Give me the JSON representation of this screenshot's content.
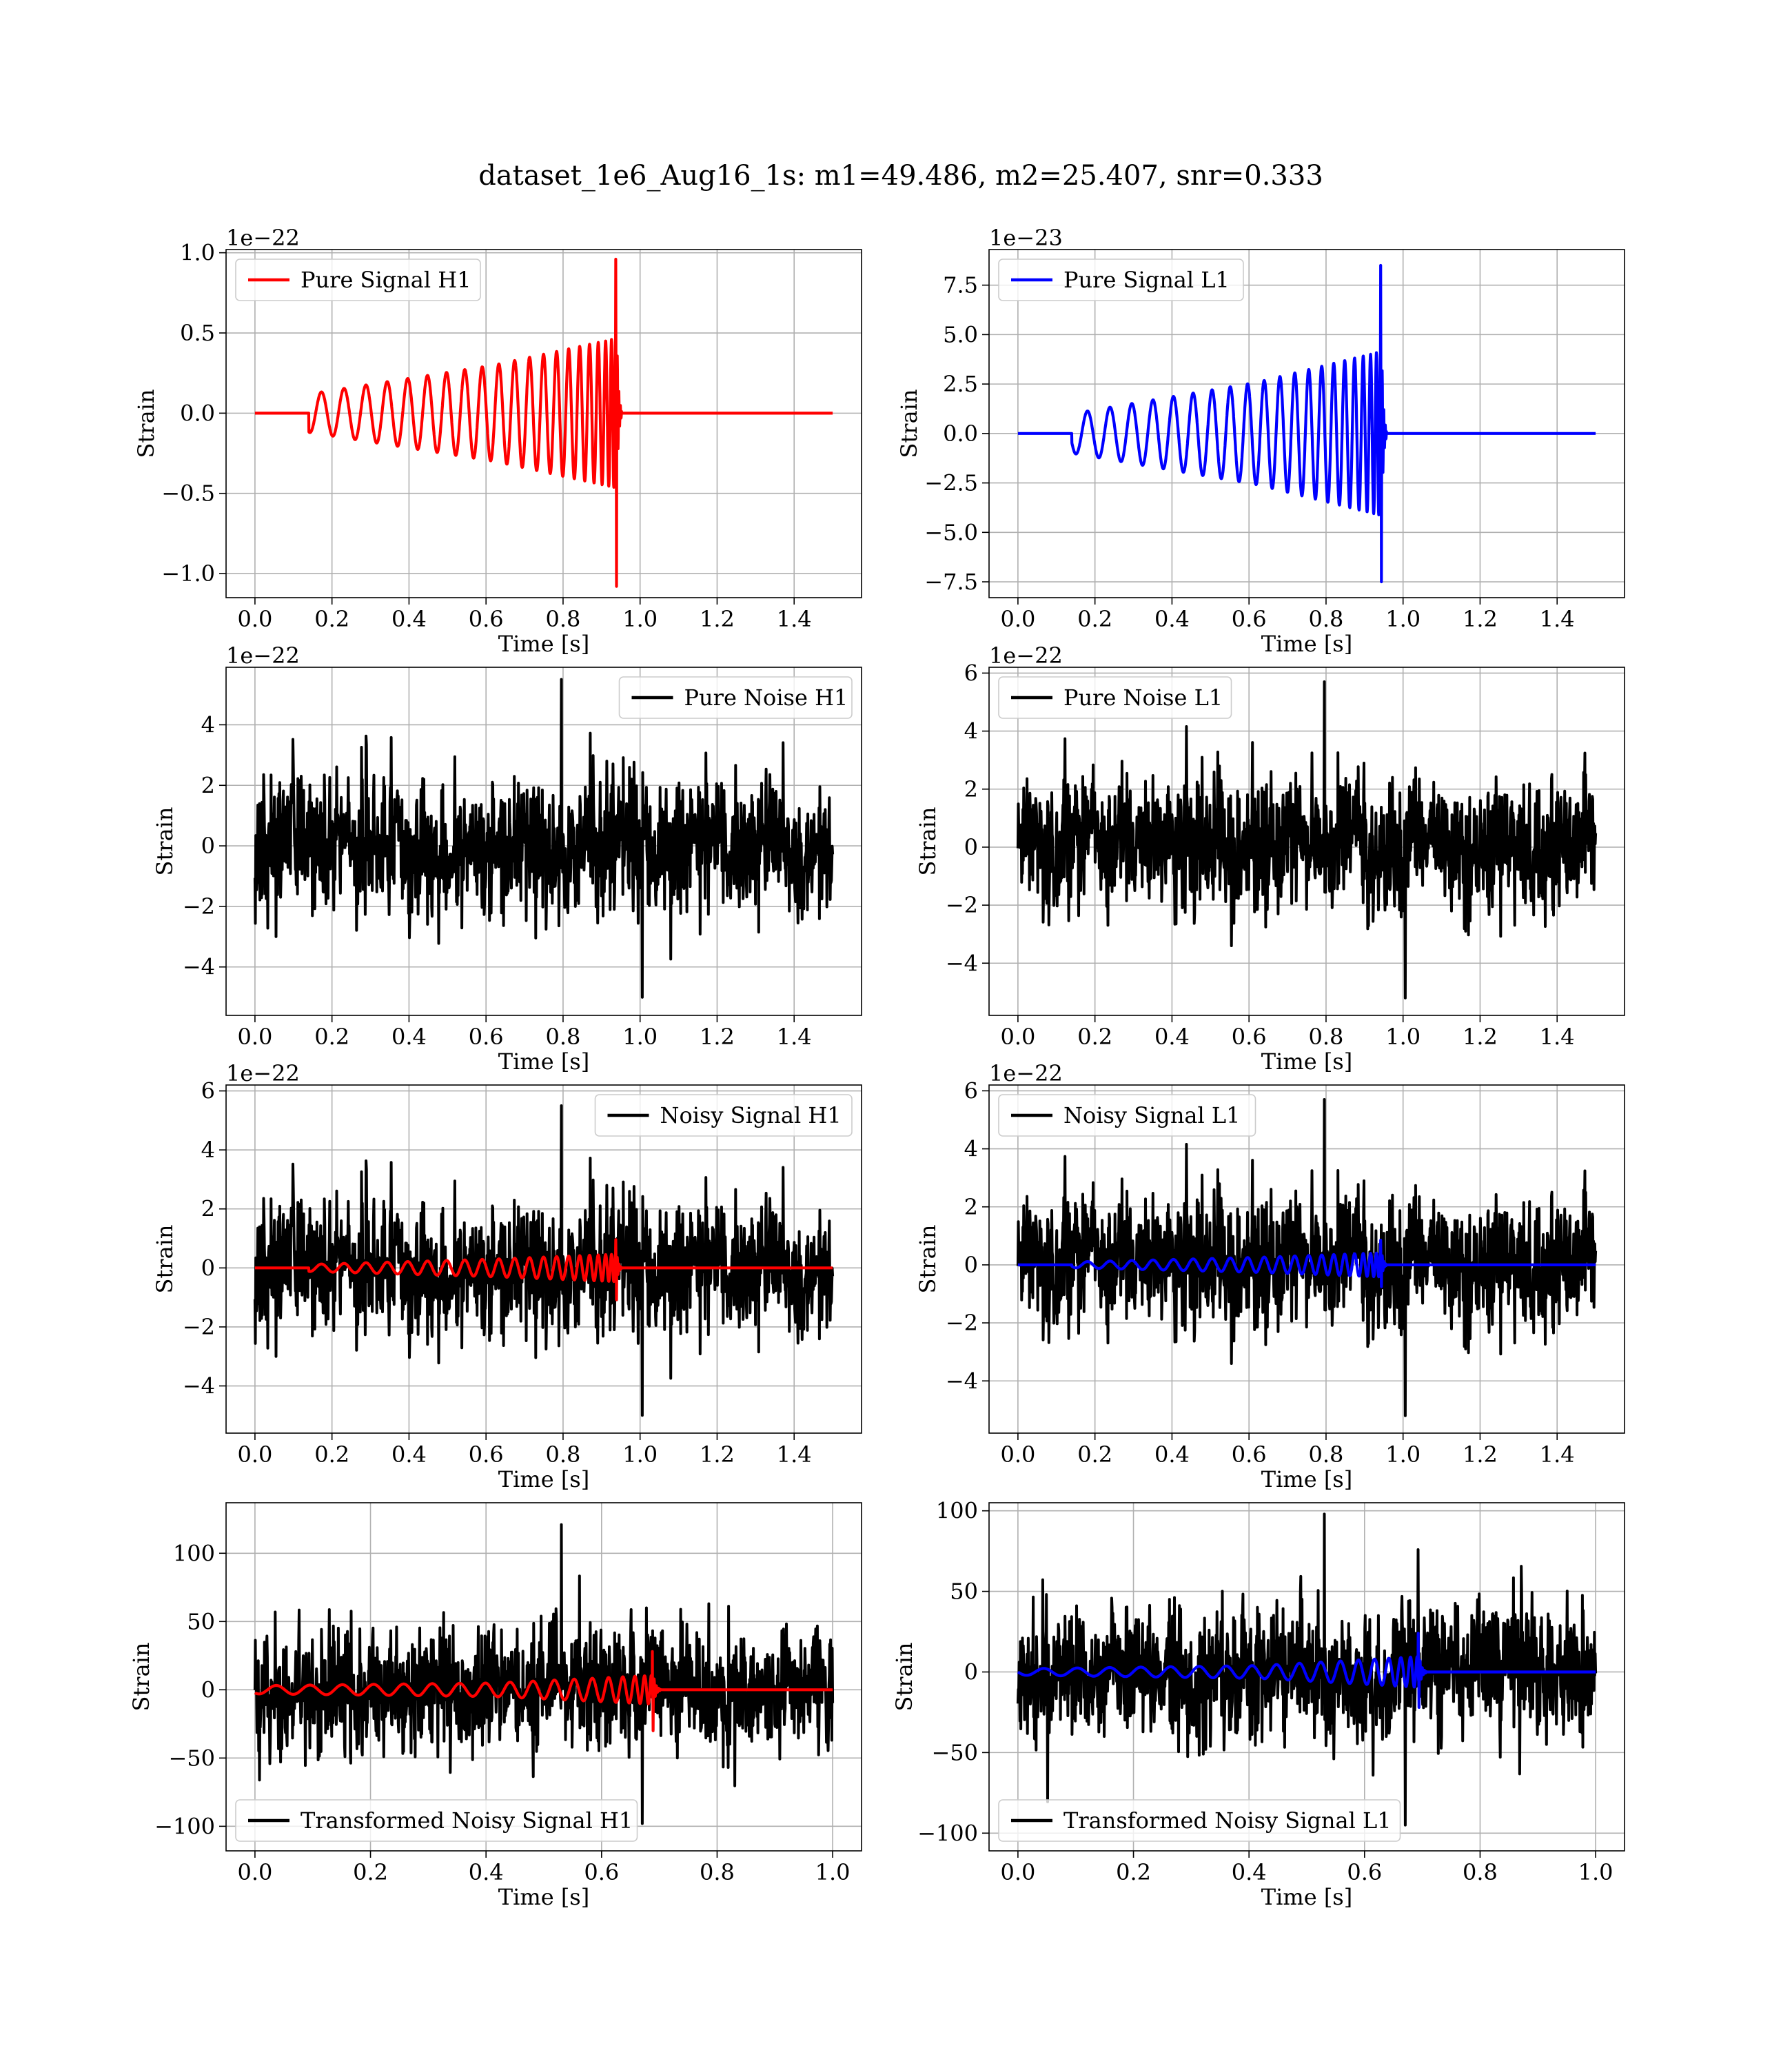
{
  "figure": {
    "suptitle": "dataset_1e6_Aug16_1s: m1=49.486, m2=25.407, snr=0.333"
  },
  "chart_data": [
    {
      "type": "line",
      "id": "pure-signal-h1",
      "xlabel": "Time [s]",
      "ylabel": "Strain",
      "offset_text": "1e−22",
      "xlim": [
        -0.075,
        1.575
      ],
      "ylim": [
        -1.15,
        1.02
      ],
      "xticks": [
        0,
        0.2,
        0.4,
        0.6,
        0.8,
        1.0,
        1.2,
        1.4
      ],
      "xtick_labels": [
        "0.0",
        "0.2",
        "0.4",
        "0.6",
        "0.8",
        "1.0",
        "1.2",
        "1.4"
      ],
      "yticks": [
        -1.0,
        -0.5,
        0.0,
        0.5,
        1.0
      ],
      "ytick_labels": [
        "−1.0",
        "−0.5",
        "0.0",
        "0.5",
        "1.0"
      ],
      "grid": true,
      "legend_position": "upper-left",
      "series": [
        {
          "name": "Pure Signal H1",
          "color": "#ff0000",
          "kind": "chirp",
          "t_start": 0.0,
          "t_end": 1.5,
          "t_onset": 0.14,
          "t_merger": 0.94,
          "peak_pos": 0.96,
          "peak_neg": -1.08,
          "amp_start": 0.12,
          "amp_mid": 0.3,
          "amp_late": 0.45
        }
      ]
    },
    {
      "type": "line",
      "id": "pure-signal-l1",
      "xlabel": "Time [s]",
      "ylabel": "Strain",
      "offset_text": "1e−23",
      "xlim": [
        -0.075,
        1.575
      ],
      "ylim": [
        -8.3,
        9.3
      ],
      "xticks": [
        0,
        0.2,
        0.4,
        0.6,
        0.8,
        1.0,
        1.2,
        1.4
      ],
      "xtick_labels": [
        "0.0",
        "0.2",
        "0.4",
        "0.6",
        "0.8",
        "1.0",
        "1.2",
        "1.4"
      ],
      "yticks": [
        -7.5,
        -5.0,
        -2.5,
        0.0,
        2.5,
        5.0,
        7.5
      ],
      "ytick_labels": [
        "−7.5",
        "−5.0",
        "−2.5",
        "0.0",
        "2.5",
        "5.0",
        "7.5"
      ],
      "grid": true,
      "legend_position": "upper-left",
      "series": [
        {
          "name": "Pure Signal L1",
          "color": "#0000ff",
          "kind": "chirp",
          "t_start": 0.0,
          "t_end": 1.5,
          "t_onset": 0.14,
          "t_merger": 0.945,
          "peak_pos": 8.5,
          "peak_neg": -7.5,
          "amp_start": 1.0,
          "amp_mid": 2.6,
          "amp_late": 4.0
        }
      ]
    },
    {
      "type": "line",
      "id": "pure-noise-h1",
      "xlabel": "Time [s]",
      "ylabel": "Strain",
      "offset_text": "1e−22",
      "xlim": [
        -0.075,
        1.575
      ],
      "ylim": [
        -5.6,
        5.9
      ],
      "xticks": [
        0,
        0.2,
        0.4,
        0.6,
        0.8,
        1.0,
        1.2,
        1.4
      ],
      "xtick_labels": [
        "0.0",
        "0.2",
        "0.4",
        "0.6",
        "0.8",
        "1.0",
        "1.2",
        "1.4"
      ],
      "yticks": [
        -4,
        -2,
        0,
        2,
        4
      ],
      "ytick_labels": [
        "−4",
        "−2",
        "0",
        "2",
        "4"
      ],
      "grid": true,
      "legend_position": "upper-right",
      "series": [
        {
          "name": "Pure Noise H1",
          "color": "#000000",
          "kind": "noise",
          "t_start": 0.0,
          "t_end": 1.5,
          "sigma": 1.4,
          "max": 5.5,
          "min": -5.0,
          "seed": 11
        }
      ]
    },
    {
      "type": "line",
      "id": "pure-noise-l1",
      "xlabel": "Time [s]",
      "ylabel": "Strain",
      "offset_text": "1e−22",
      "xlim": [
        -0.075,
        1.575
      ],
      "ylim": [
        -5.8,
        6.2
      ],
      "xticks": [
        0,
        0.2,
        0.4,
        0.6,
        0.8,
        1.0,
        1.2,
        1.4
      ],
      "xtick_labels": [
        "0.0",
        "0.2",
        "0.4",
        "0.6",
        "0.8",
        "1.0",
        "1.2",
        "1.4"
      ],
      "yticks": [
        -4,
        -2,
        0,
        2,
        4,
        6
      ],
      "ytick_labels": [
        "−4",
        "−2",
        "0",
        "2",
        "4",
        "6"
      ],
      "grid": true,
      "legend_position": "upper-left",
      "series": [
        {
          "name": "Pure Noise L1",
          "color": "#000000",
          "kind": "noise",
          "t_start": 0.0,
          "t_end": 1.5,
          "sigma": 1.4,
          "max": 5.7,
          "min": -5.2,
          "seed": 23
        }
      ]
    },
    {
      "type": "line",
      "id": "noisy-signal-h1",
      "xlabel": "Time [s]",
      "ylabel": "Strain",
      "offset_text": "1e−22",
      "xlim": [
        -0.075,
        1.575
      ],
      "ylim": [
        -5.6,
        6.2
      ],
      "xticks": [
        0,
        0.2,
        0.4,
        0.6,
        0.8,
        1.0,
        1.2,
        1.4
      ],
      "xtick_labels": [
        "0.0",
        "0.2",
        "0.4",
        "0.6",
        "0.8",
        "1.0",
        "1.2",
        "1.4"
      ],
      "yticks": [
        -4,
        -2,
        0,
        2,
        4,
        6
      ],
      "ytick_labels": [
        "−4",
        "−2",
        "0",
        "2",
        "4",
        "6"
      ],
      "grid": true,
      "legend_position": "upper-right",
      "series": [
        {
          "name": "Noisy Signal H1",
          "color": "#000000",
          "kind": "noise",
          "t_start": 0.0,
          "t_end": 1.5,
          "sigma": 1.4,
          "max": 5.5,
          "min": -5.0,
          "seed": 11
        },
        {
          "name": "",
          "color": "#ff0000",
          "kind": "chirp",
          "t_start": 0.0,
          "t_end": 1.5,
          "t_onset": 0.14,
          "t_merger": 0.94,
          "peak_pos": 0.96,
          "peak_neg": -1.08,
          "amp_start": 0.12,
          "amp_mid": 0.3,
          "amp_late": 0.45
        }
      ]
    },
    {
      "type": "line",
      "id": "noisy-signal-l1",
      "xlabel": "Time [s]",
      "ylabel": "Strain",
      "offset_text": "1e−22",
      "xlim": [
        -0.075,
        1.575
      ],
      "ylim": [
        -5.8,
        6.2
      ],
      "xticks": [
        0,
        0.2,
        0.4,
        0.6,
        0.8,
        1.0,
        1.2,
        1.4
      ],
      "xtick_labels": [
        "0.0",
        "0.2",
        "0.4",
        "0.6",
        "0.8",
        "1.0",
        "1.2",
        "1.4"
      ],
      "yticks": [
        -4,
        -2,
        0,
        2,
        4,
        6
      ],
      "ytick_labels": [
        "−4",
        "−2",
        "0",
        "2",
        "4",
        "6"
      ],
      "grid": true,
      "legend_position": "upper-left",
      "series": [
        {
          "name": "Noisy Signal L1",
          "color": "#000000",
          "kind": "noise",
          "t_start": 0.0,
          "t_end": 1.5,
          "sigma": 1.4,
          "max": 5.7,
          "min": -5.2,
          "seed": 23
        },
        {
          "name": "",
          "color": "#0000ff",
          "kind": "chirp",
          "t_start": 0.0,
          "t_end": 1.5,
          "t_onset": 0.14,
          "t_merger": 0.945,
          "peak_pos": 0.85,
          "peak_neg": -0.75,
          "amp_start": 0.1,
          "amp_mid": 0.26,
          "amp_late": 0.4
        }
      ]
    },
    {
      "type": "line",
      "id": "transformed-noisy-signal-h1",
      "xlabel": "Time [s]",
      "ylabel": "Strain",
      "offset_text": "",
      "xlim": [
        -0.05,
        1.05
      ],
      "ylim": [
        -118,
        137
      ],
      "xticks": [
        0,
        0.2,
        0.4,
        0.6,
        0.8,
        1.0
      ],
      "xtick_labels": [
        "0.0",
        "0.2",
        "0.4",
        "0.6",
        "0.8",
        "1.0"
      ],
      "yticks": [
        -100,
        -50,
        0,
        50,
        100
      ],
      "ytick_labels": [
        "−100",
        "−50",
        "0",
        "50",
        "100"
      ],
      "grid": true,
      "legend_position": "lower-left",
      "series": [
        {
          "name": "Transformed Noisy Signal H1",
          "color": "#000000",
          "kind": "noise",
          "t_start": 0.0,
          "t_end": 1.0,
          "sigma": 28,
          "max": 121,
          "min": -98,
          "seed": 37
        },
        {
          "name": "",
          "color": "#ff0000",
          "kind": "chirp",
          "t_start": 0.0,
          "t_end": 1.0,
          "t_onset": 0.0,
          "t_merger": 0.69,
          "peak_pos": 28,
          "peak_neg": -30,
          "amp_start": 3,
          "amp_mid": 5,
          "amp_late": 10
        }
      ]
    },
    {
      "type": "line",
      "id": "transformed-noisy-signal-l1",
      "xlabel": "Time [s]",
      "ylabel": "Strain",
      "offset_text": "",
      "xlim": [
        -0.05,
        1.05
      ],
      "ylim": [
        -111,
        105
      ],
      "xticks": [
        0,
        0.2,
        0.4,
        0.6,
        0.8,
        1.0
      ],
      "xtick_labels": [
        "0.0",
        "0.2",
        "0.4",
        "0.6",
        "0.8",
        "1.0"
      ],
      "yticks": [
        -100,
        -50,
        0,
        50,
        100
      ],
      "ytick_labels": [
        "−100",
        "−50",
        "0",
        "50",
        "100"
      ],
      "grid": true,
      "legend_position": "lower-left",
      "series": [
        {
          "name": "Transformed Noisy Signal L1",
          "color": "#000000",
          "kind": "noise",
          "t_start": 0.0,
          "t_end": 1.0,
          "sigma": 26,
          "max": 98,
          "min": -95,
          "seed": 41
        },
        {
          "name": "",
          "color": "#0000ff",
          "kind": "chirp",
          "t_start": 0.0,
          "t_end": 1.0,
          "t_onset": 0.0,
          "t_merger": 0.695,
          "peak_pos": 24,
          "peak_neg": -22,
          "amp_start": 2,
          "amp_mid": 4,
          "amp_late": 9
        }
      ]
    }
  ]
}
